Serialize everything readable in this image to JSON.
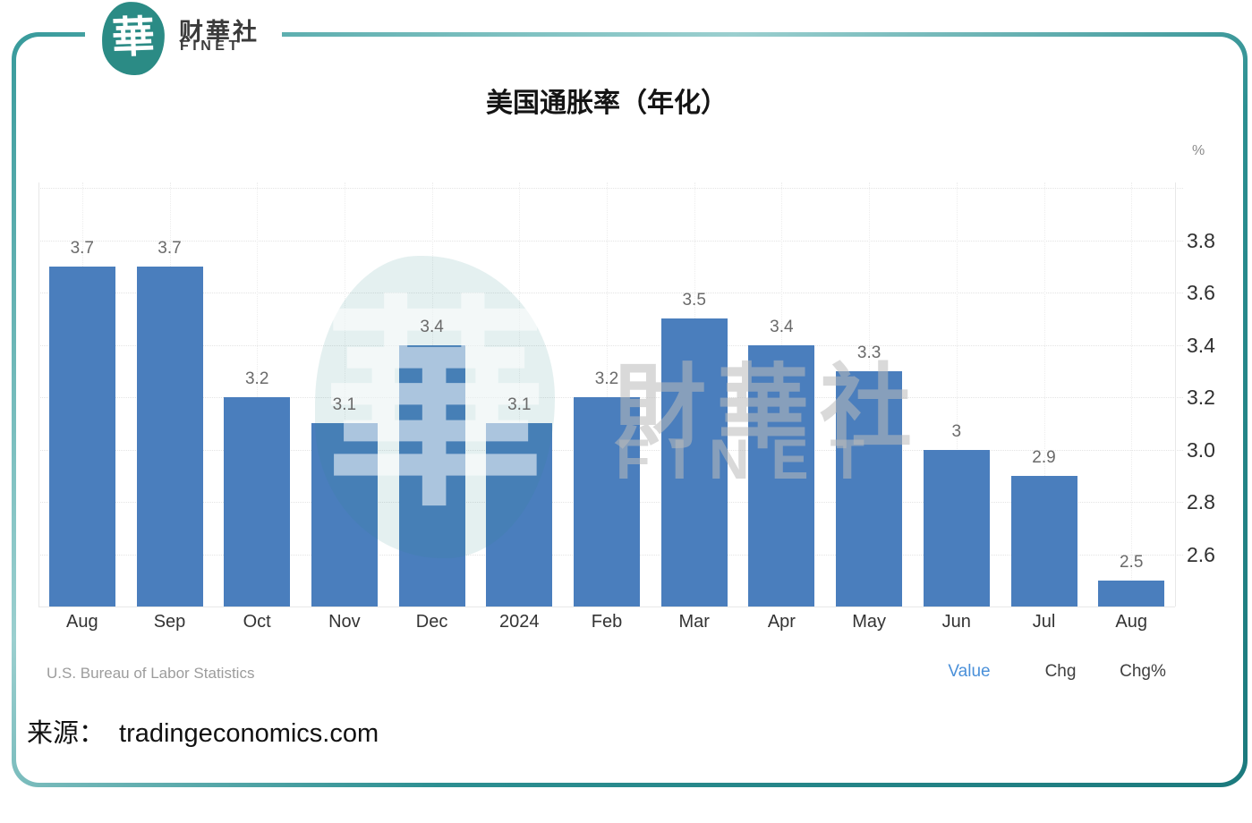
{
  "header": {
    "logo_glyph": "華",
    "brand_cn": "财華社",
    "brand_en": "FINET"
  },
  "title": "美国通胀率（年化）",
  "chart_data": {
    "type": "bar",
    "title": "美国通胀率（年化）",
    "unit": "%",
    "categories": [
      "Aug",
      "Sep",
      "Oct",
      "Nov",
      "Dec",
      "2024",
      "Feb",
      "Mar",
      "Apr",
      "May",
      "Jun",
      "Jul",
      "Aug"
    ],
    "values": [
      3.7,
      3.7,
      3.2,
      3.1,
      3.4,
      3.1,
      3.2,
      3.5,
      3.4,
      3.3,
      3.0,
      2.9,
      2.5
    ],
    "value_labels": [
      "3.7",
      "3.7",
      "3.2",
      "3.1",
      "3.4",
      "3.1",
      "3.2",
      "3.5",
      "3.4",
      "3.3",
      "3",
      "2.9",
      "2.5"
    ],
    "y_ticks": [
      3.8,
      3.6,
      3.4,
      3.2,
      3.0,
      2.8,
      2.6
    ],
    "y_tick_labels": [
      "3.8",
      "3.6",
      "3.4",
      "3.2",
      "3.0",
      "2.8",
      "2.6"
    ],
    "ylim": [
      2.4,
      4.02
    ],
    "grid_step": 0.2,
    "grid": true,
    "bar_color": "#4a7ebd",
    "source": "U.S. Bureau of Labor Statistics",
    "legend_position": "bottom-right"
  },
  "watermark": {
    "logo_glyph": "華",
    "text_cn": "財華社",
    "text_en": "FINET"
  },
  "footer": {
    "attribution": "U.S. Bureau of Labor Statistics",
    "legend": [
      {
        "label": "Value",
        "active": true
      },
      {
        "label": "Chg",
        "active": false
      },
      {
        "label": "Chg%",
        "active": false
      }
    ]
  },
  "source": {
    "label": "来源：",
    "url": "tradingeconomics.com"
  },
  "colors": {
    "accent_teal": "#27888b",
    "bar_blue": "#4a7ebd",
    "link_blue": "#4a90d9",
    "grid_gray": "#e4e4e4"
  }
}
